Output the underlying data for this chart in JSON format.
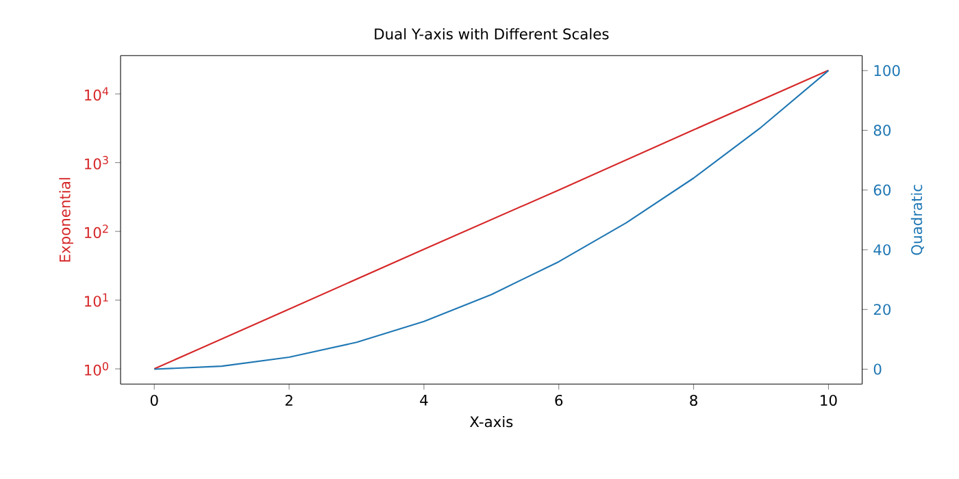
{
  "chart_data": {
    "type": "line",
    "title": "Dual Y-axis with Different Scales",
    "xlabel": "X-axis",
    "ylabel": "Exponential",
    "y2label": "Quadratic",
    "log": "y",
    "xlim": [
      -0.5,
      10.5
    ],
    "xticks": [
      0,
      2,
      4,
      6,
      8,
      10
    ],
    "ylim": [
      0.6,
      36000
    ],
    "yticks": [
      {
        "value": 1,
        "label": "10$^{0}$"
      },
      {
        "value": 10,
        "label": "10$^{1}$"
      },
      {
        "value": 100,
        "label": "10$^{2}$"
      },
      {
        "value": 1000,
        "label": "10$^{3}$"
      },
      {
        "value": 10000,
        "label": "10$^{4}$"
      }
    ],
    "y2lim": [
      -5,
      105
    ],
    "y2ticks": [
      0,
      20,
      40,
      60,
      80,
      100
    ],
    "series": [
      {
        "color": "#d62728",
        "x": [
          0,
          2,
          4,
          6,
          8,
          10
        ],
        "values": [
          1,
          7.4,
          55,
          400,
          3000,
          22000
        ]
      },
      {
        "color": "#1f77b4",
        "axis": "y2",
        "x": [
          0,
          1,
          2,
          3,
          4,
          5,
          6,
          7,
          8,
          9,
          10
        ],
        "values": [
          0,
          1,
          4,
          9,
          16,
          25,
          36,
          49,
          64,
          81,
          100
        ]
      }
    ]
  }
}
